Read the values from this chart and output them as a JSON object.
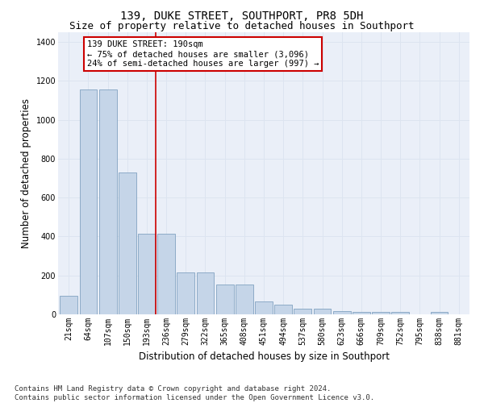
{
  "title": "139, DUKE STREET, SOUTHPORT, PR8 5DH",
  "subtitle": "Size of property relative to detached houses in Southport",
  "xlabel": "Distribution of detached houses by size in Southport",
  "ylabel": "Number of detached properties",
  "categories": [
    "21sqm",
    "64sqm",
    "107sqm",
    "150sqm",
    "193sqm",
    "236sqm",
    "279sqm",
    "322sqm",
    "365sqm",
    "408sqm",
    "451sqm",
    "494sqm",
    "537sqm",
    "580sqm",
    "623sqm",
    "666sqm",
    "709sqm",
    "752sqm",
    "795sqm",
    "838sqm",
    "881sqm"
  ],
  "values": [
    95,
    1155,
    1155,
    730,
    415,
    415,
    215,
    215,
    155,
    155,
    68,
    48,
    30,
    27,
    17,
    13,
    13,
    13,
    0,
    14,
    0
  ],
  "bar_color": "#c5d5e8",
  "bar_edge_color": "#7096b8",
  "highlight_color": "#cc0000",
  "vline_index": 4,
  "annotation_text": "139 DUKE STREET: 190sqm\n← 75% of detached houses are smaller (3,096)\n24% of semi-detached houses are larger (997) →",
  "annotation_box_color": "#ffffff",
  "annotation_box_edge": "#cc0000",
  "ylim": [
    0,
    1450
  ],
  "yticks": [
    0,
    200,
    400,
    600,
    800,
    1000,
    1200,
    1400
  ],
  "grid_color": "#dce4f0",
  "bg_color": "#eaeff8",
  "footer": "Contains HM Land Registry data © Crown copyright and database right 2024.\nContains public sector information licensed under the Open Government Licence v3.0.",
  "title_fontsize": 10,
  "subtitle_fontsize": 9,
  "axis_label_fontsize": 8.5,
  "tick_fontsize": 7,
  "footer_fontsize": 6.5,
  "annotation_fontsize": 7.5
}
